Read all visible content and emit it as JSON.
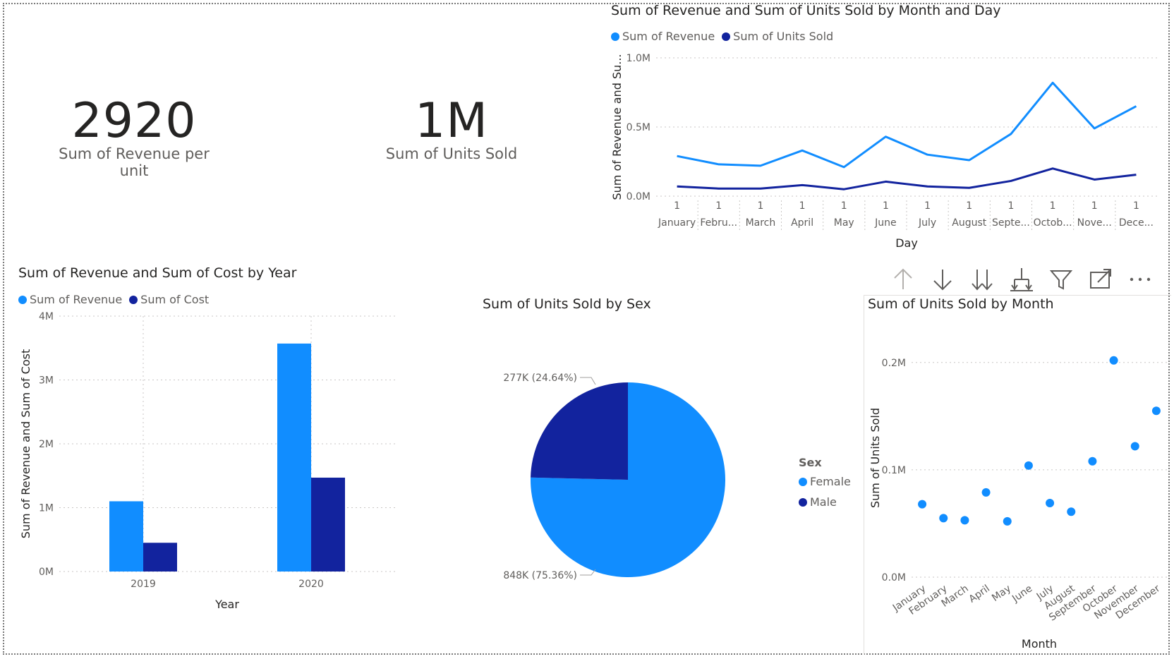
{
  "cards": [
    {
      "value": "2920",
      "label": "Sum of Revenue per unit"
    },
    {
      "value": "1M",
      "label": "Sum of Units Sold"
    }
  ],
  "colors": {
    "light": "#118DFF",
    "dark": "#12239E",
    "grid": "#c8c6c4",
    "axis_text": "#605e5c",
    "icon": "#605e5c"
  },
  "toolbar": {
    "icons": [
      "arrow-up-icon",
      "arrow-down-icon",
      "double-arrow-down-icon",
      "expand-hierarchy-icon",
      "filter-icon",
      "focus-mode-icon",
      "more-options-icon"
    ]
  },
  "chart_data": [
    {
      "id": "line",
      "type": "line",
      "title": "Sum of Revenue and Sum of Units Sold by Month and Day",
      "xlabel": "Day",
      "ylabel": "Sum of Revenue and Su...",
      "legend_position": "top-left",
      "grid": true,
      "categories": [
        "January",
        "Febru...",
        "March",
        "April",
        "May",
        "June",
        "July",
        "August",
        "Septe...",
        "Octob...",
        "Nove...",
        "Dece..."
      ],
      "day_labels": [
        "1",
        "1",
        "1",
        "1",
        "1",
        "1",
        "1",
        "1",
        "1",
        "1",
        "1",
        "1"
      ],
      "yticks": [
        "0.0M",
        "0.5M",
        "1.0M"
      ],
      "ylim": [
        0,
        1.0
      ],
      "series": [
        {
          "name": "Sum of Revenue",
          "values": [
            0.29,
            0.23,
            0.22,
            0.33,
            0.21,
            0.43,
            0.3,
            0.26,
            0.45,
            0.82,
            0.49,
            0.65
          ]
        },
        {
          "name": "Sum of Units Sold",
          "values": [
            0.07,
            0.055,
            0.055,
            0.08,
            0.05,
            0.105,
            0.07,
            0.06,
            0.11,
            0.2,
            0.12,
            0.155
          ]
        }
      ]
    },
    {
      "id": "bar",
      "type": "bar",
      "title": "Sum of Revenue and Sum of Cost by Year",
      "xlabel": "Year",
      "ylabel": "Sum of Revenue and Sum of Cost",
      "legend_position": "top-left",
      "grid": true,
      "categories": [
        "2019",
        "2020"
      ],
      "yticks": [
        "0M",
        "1M",
        "2M",
        "3M",
        "4M"
      ],
      "ylim": [
        0,
        4
      ],
      "series": [
        {
          "name": "Sum of Revenue",
          "values": [
            1.1,
            3.57
          ]
        },
        {
          "name": "Sum of Cost",
          "values": [
            0.45,
            1.47
          ]
        }
      ]
    },
    {
      "id": "pie",
      "type": "pie",
      "title": "Sum of Units Sold by Sex",
      "legend_title": "Sex",
      "legend_position": "right",
      "slices": [
        {
          "name": "Female",
          "value": 848,
          "label": "848K (75.36%)"
        },
        {
          "name": "Male",
          "value": 277,
          "label": "277K (24.64%)"
        }
      ]
    },
    {
      "id": "scatter",
      "type": "scatter",
      "title": "Sum of Units Sold by Month",
      "xlabel": "Month",
      "ylabel": "Sum of Units Sold",
      "grid": true,
      "categories": [
        "January",
        "February",
        "March",
        "April",
        "May",
        "June",
        "July",
        "August",
        "September",
        "October",
        "November",
        "December"
      ],
      "yticks": [
        "0.0M",
        "0.1M",
        "0.2M"
      ],
      "ylim": [
        0,
        0.2
      ],
      "values": [
        0.068,
        0.055,
        0.053,
        0.079,
        0.052,
        0.104,
        0.069,
        0.061,
        0.108,
        0.202,
        0.122,
        0.155
      ]
    }
  ]
}
